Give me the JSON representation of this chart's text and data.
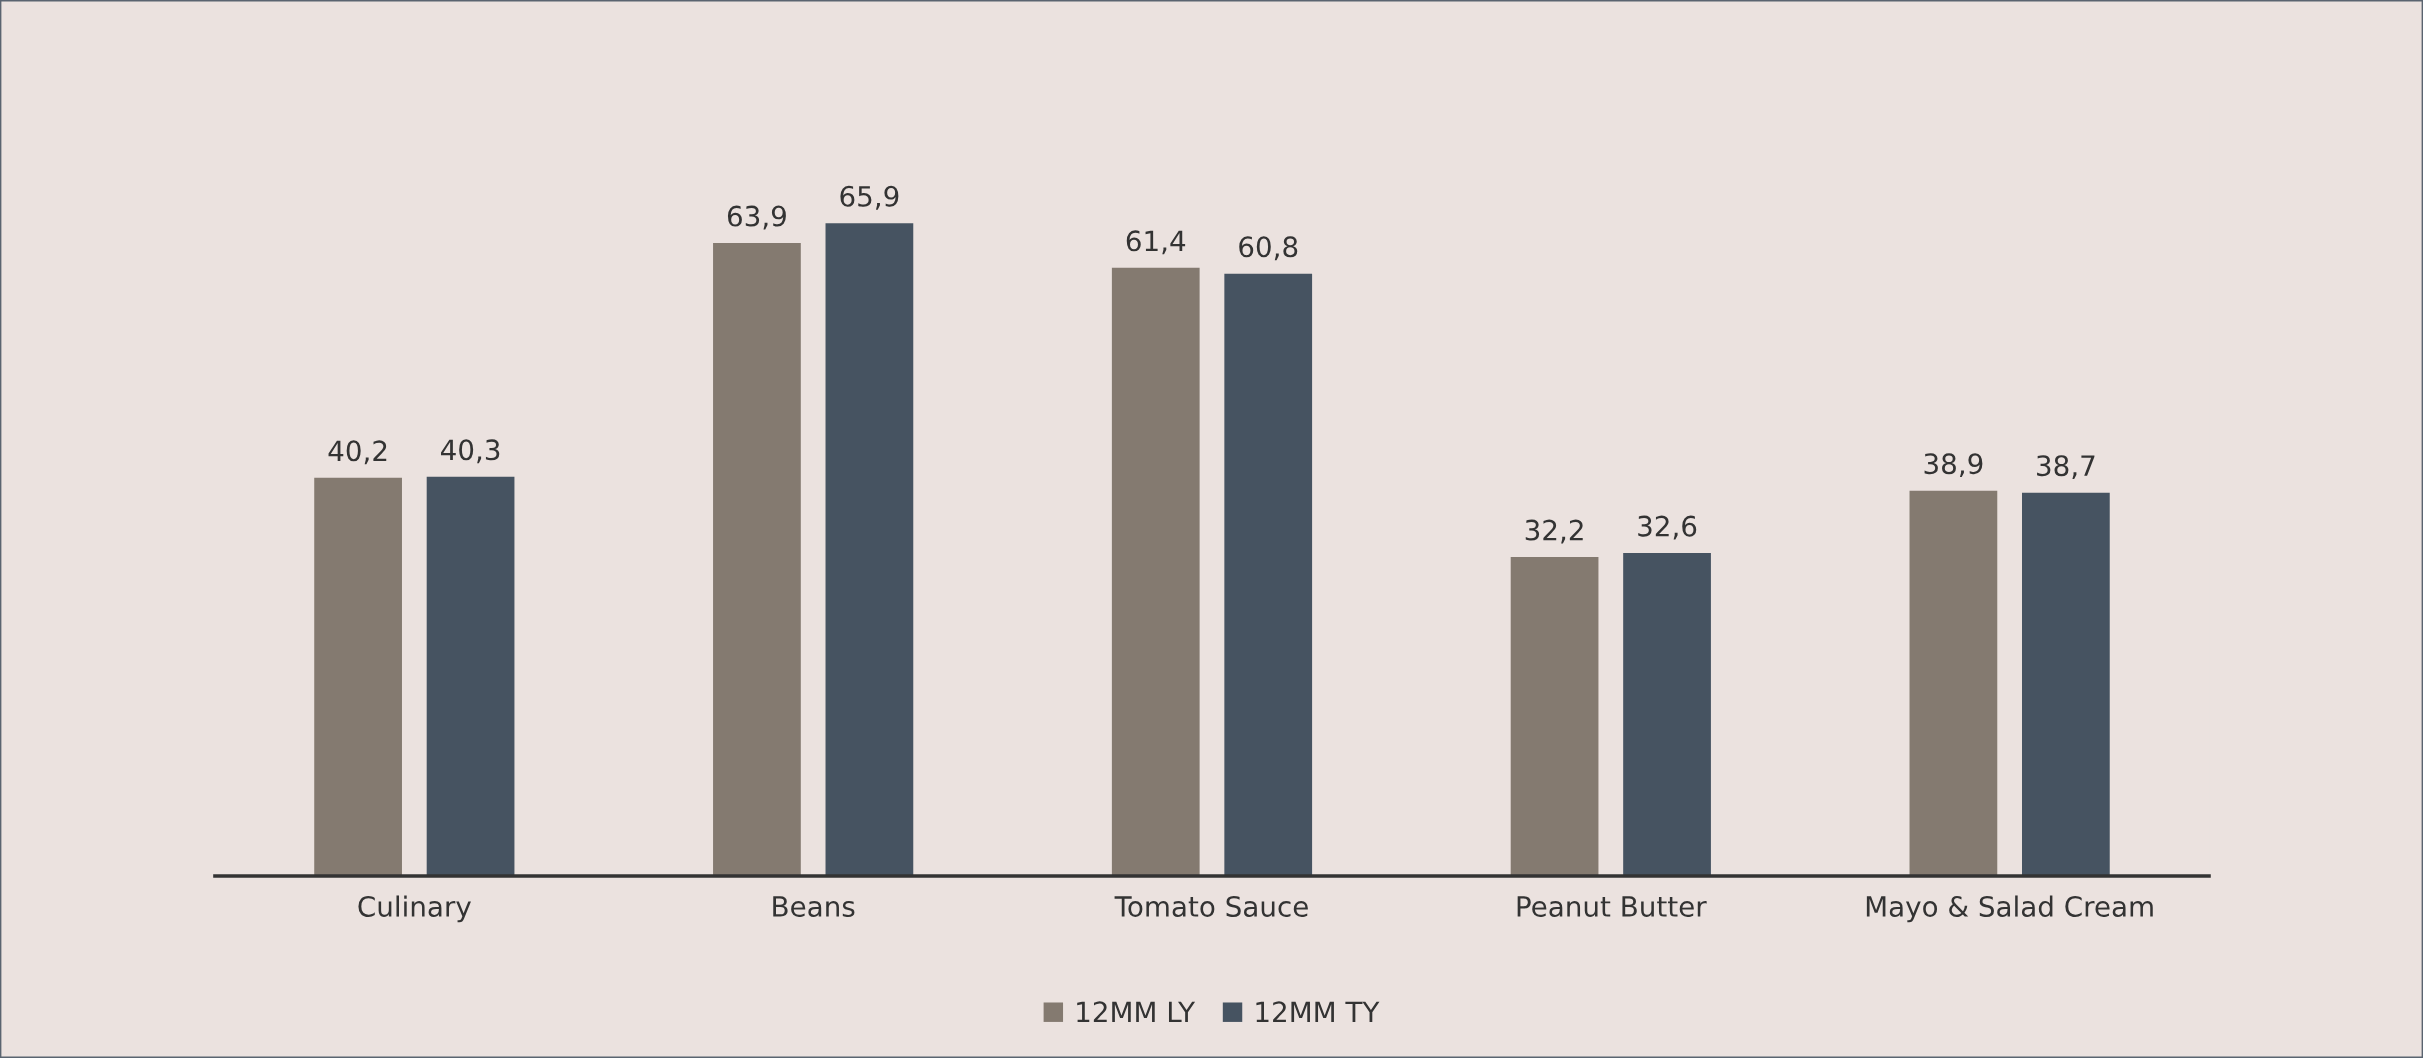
{
  "chart_data": {
    "type": "bar",
    "categories": [
      "Culinary",
      "Beans",
      "Tomato Sauce",
      "Peanut Butter",
      "Mayo & Salad Cream"
    ],
    "series": [
      {
        "name": "12MM LY",
        "color": "#847a70",
        "values": [
          40.2,
          63.9,
          61.4,
          32.2,
          38.9
        ],
        "value_labels": [
          "40,2",
          "63,9",
          "61,4",
          "32,2",
          "38,9"
        ]
      },
      {
        "name": "12MM TY",
        "color": "#465361",
        "values": [
          40.3,
          65.9,
          60.8,
          32.6,
          38.7
        ],
        "value_labels": [
          "40,3",
          "65,9",
          "60,8",
          "32,6",
          "38,7"
        ]
      }
    ],
    "legend": "bottom",
    "grid": false,
    "tick_labels": "x"
  }
}
